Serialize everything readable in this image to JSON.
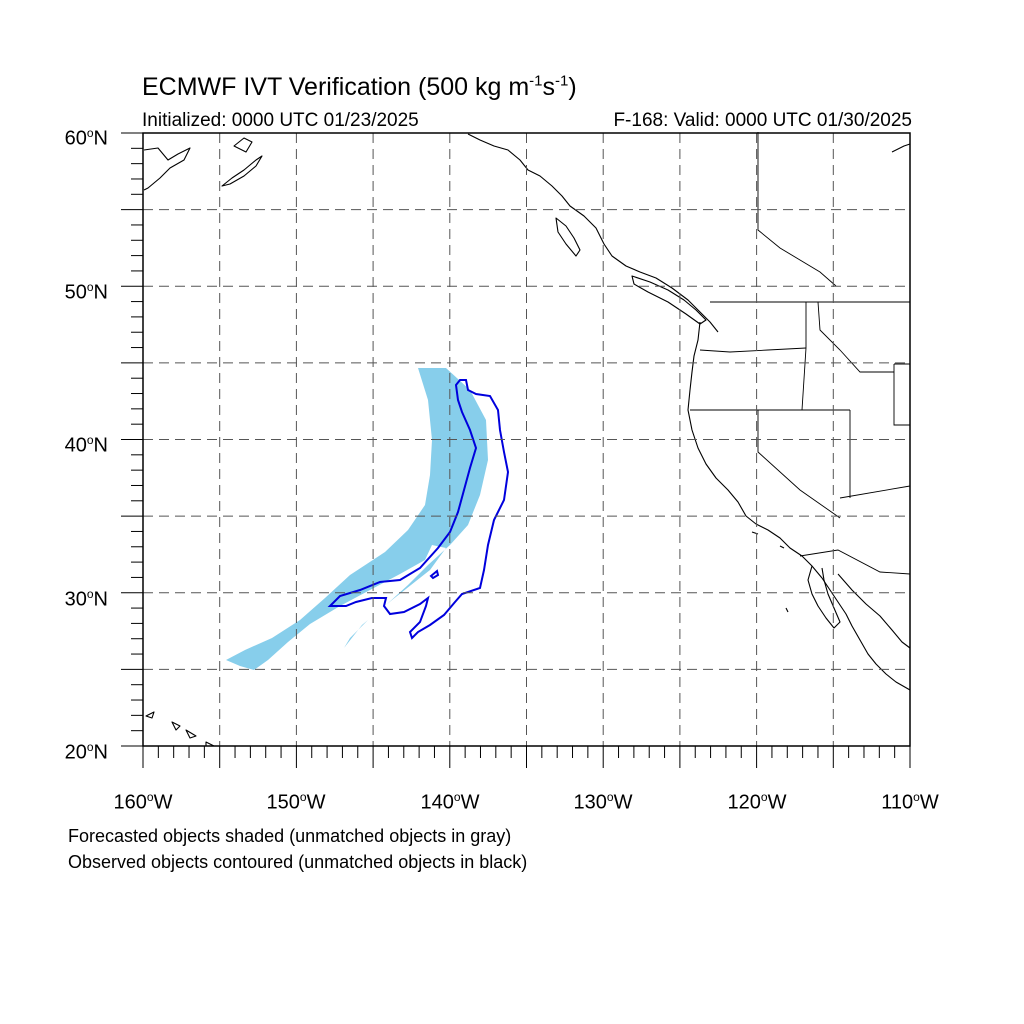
{
  "title": {
    "prefix": "ECMWF IVT Verification (500 kg m",
    "exp1": "-1",
    "mid": "s",
    "exp2": "-1",
    "suffix": ")"
  },
  "initialized": "Initialized: 0000 UTC 01/23/2025",
  "valid": "F-168: Valid: 0000 UTC 01/30/2025",
  "lat_labels": [
    "60",
    "50",
    "40",
    "30",
    "20"
  ],
  "lat_suffix": "N",
  "lon_labels": [
    "160",
    "150",
    "140",
    "130",
    "120",
    "110"
  ],
  "lon_suffix": "W",
  "degree": "o",
  "footnotes": [
    "Forecasted objects shaded (unmatched objects in gray)",
    "Observed objects contoured (unmatched objects in black)"
  ],
  "colors": {
    "forecast_fill": "#87ceeb",
    "observed_contour": "#0000dd",
    "grid": "#555555",
    "coast": "#000000"
  },
  "map": {
    "projection": "cylindrical equidistant",
    "lon_range": [
      -160,
      -110
    ],
    "lat_range": [
      20,
      60
    ],
    "grid_spacing_deg": 5
  }
}
